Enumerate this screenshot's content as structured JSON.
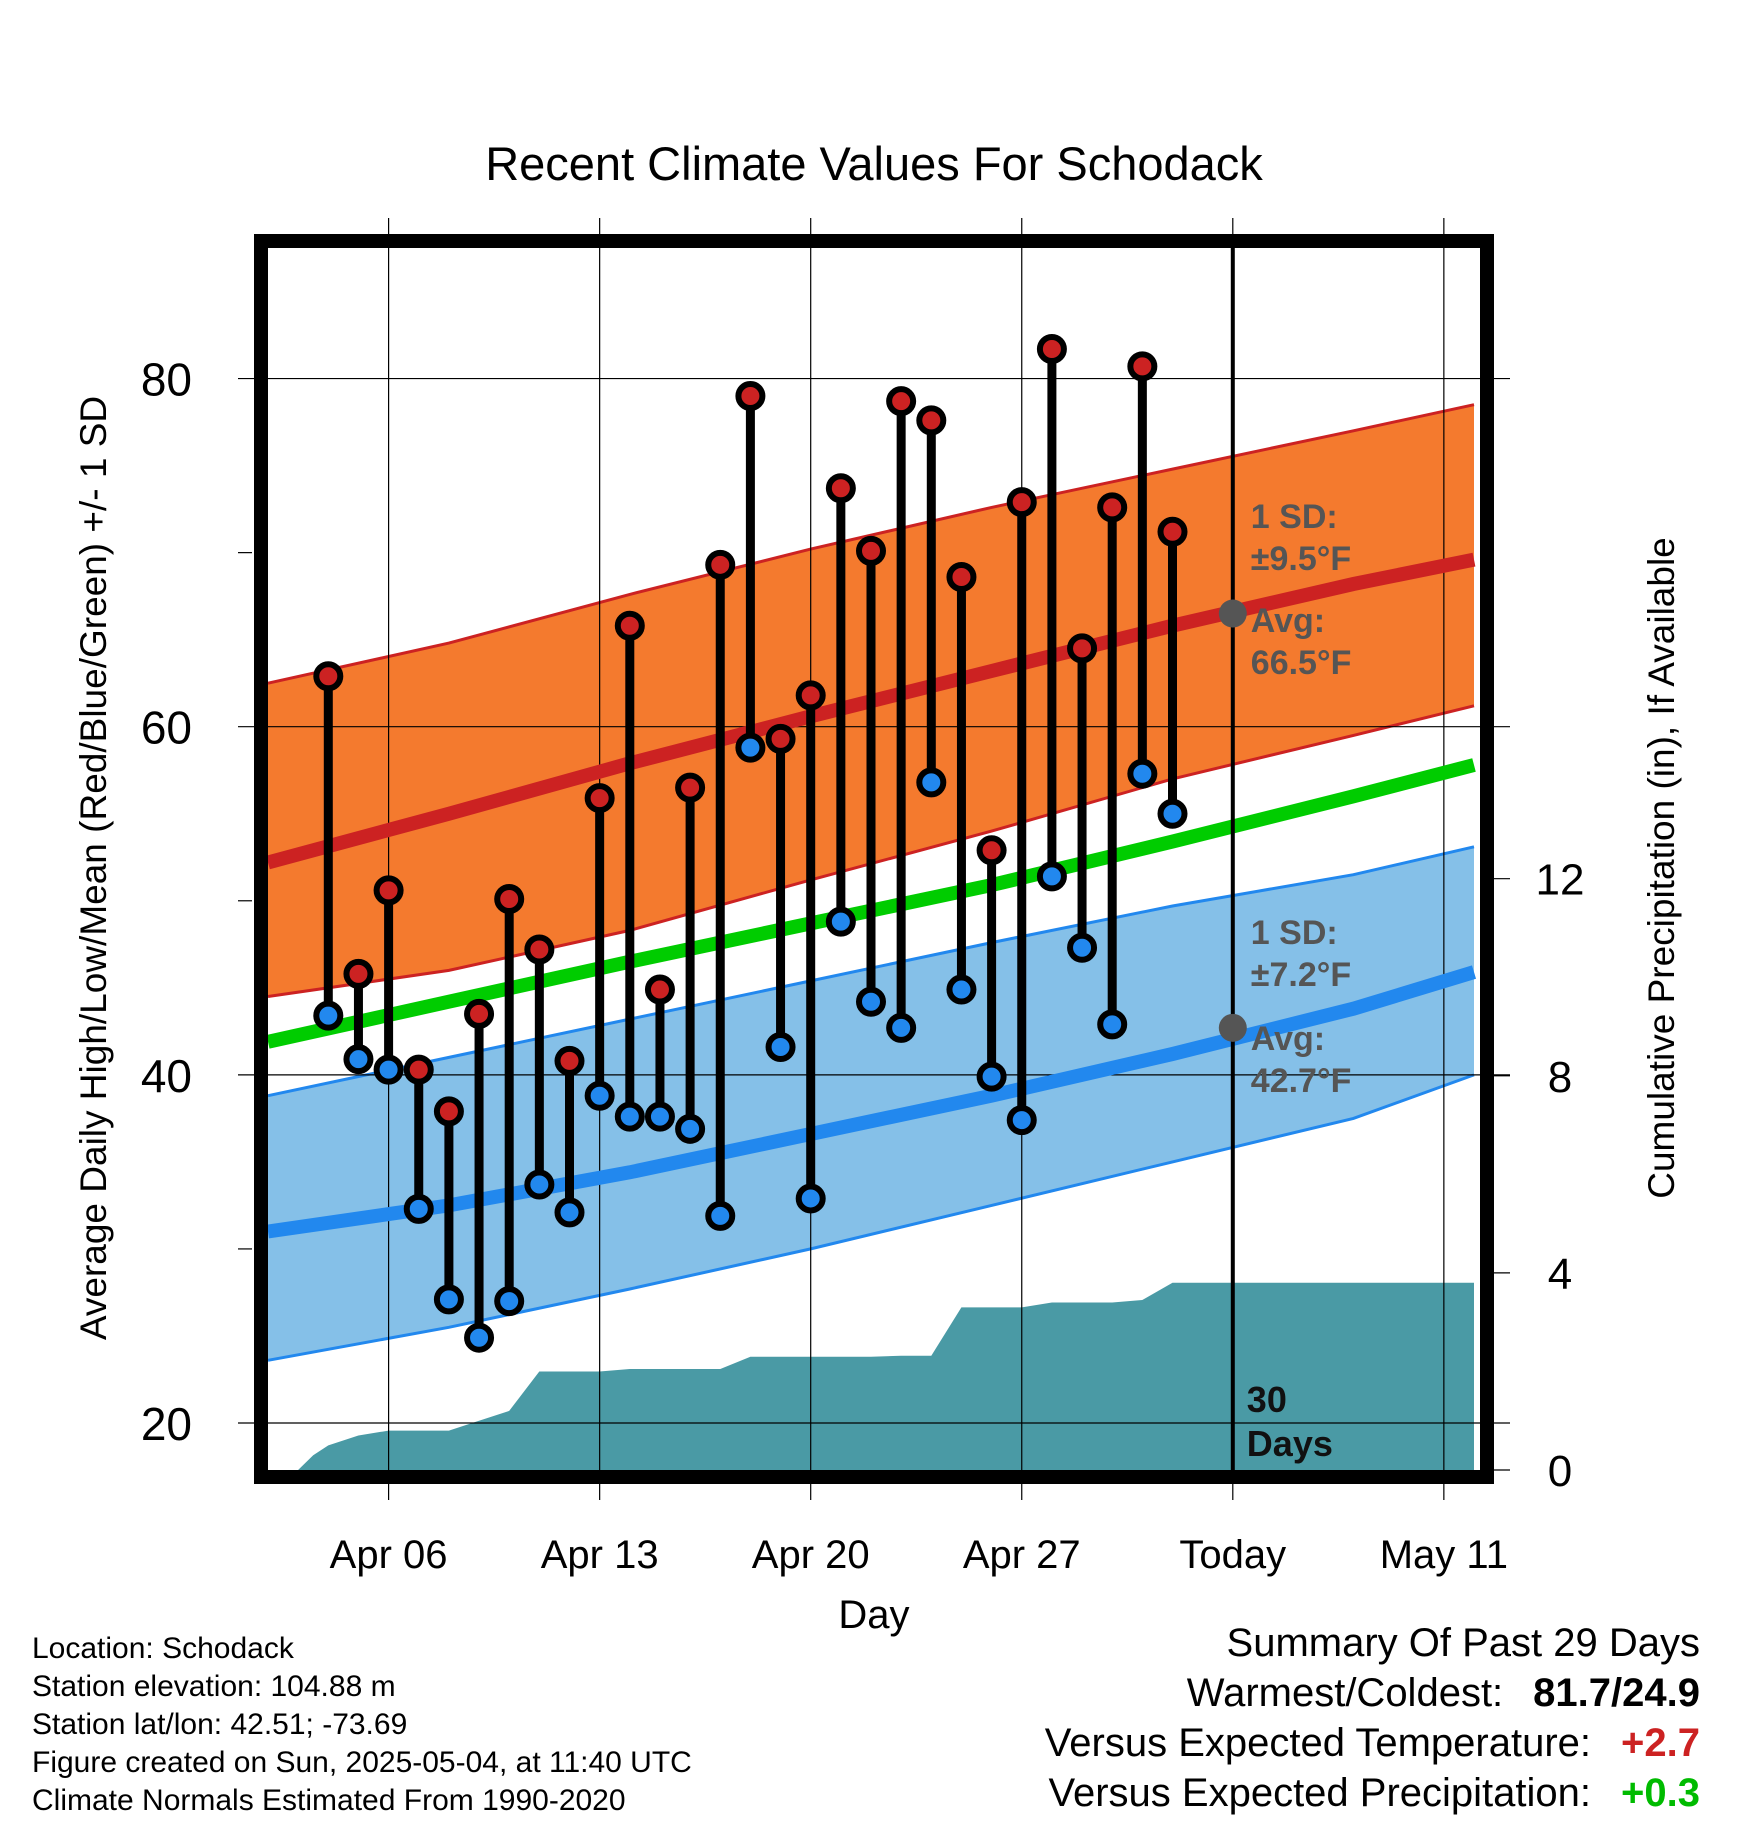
{
  "chart_data": {
    "type": "line",
    "title": "Recent Climate Values For Schodack",
    "xlabel": "Day",
    "ylabel": "Average Daily High/Low/Mean (Red/Blue/Green) +/- 1 SD",
    "y2label": "Cumulative Precipitation (in), If Available",
    "x_tick_labels": [
      "Apr 06",
      "Apr 13",
      "Apr 20",
      "Apr 27",
      "Today",
      "May 11"
    ],
    "y_ticks": [
      20,
      40,
      60,
      80
    ],
    "y2_ticks": [
      0,
      4,
      8,
      12
    ],
    "ylim": [
      17.3,
      87.5
    ],
    "y2lim": [
      0,
      24.8
    ],
    "x_range": [
      "Apr 02",
      "May 15"
    ],
    "today_index": 32,
    "grid": true,
    "daily_observations": {
      "dates": [
        "Apr 04",
        "Apr 05",
        "Apr 06",
        "Apr 07",
        "Apr 08",
        "Apr 09",
        "Apr 10",
        "Apr 11",
        "Apr 12",
        "Apr 13",
        "Apr 14",
        "Apr 15",
        "Apr 16",
        "Apr 17",
        "Apr 18",
        "Apr 19",
        "Apr 20",
        "Apr 21",
        "Apr 22",
        "Apr 23",
        "Apr 24",
        "Apr 25",
        "Apr 26",
        "Apr 27",
        "Apr 28",
        "Apr 29",
        "Apr 30",
        "May 01",
        "May 02",
        "May 03"
      ],
      "high": [
        62.9,
        45.8,
        50.6,
        40.3,
        37.9,
        43.5,
        50.1,
        47.2,
        40.8,
        55.9,
        65.8,
        44.9,
        56.5,
        69.3,
        79.0,
        59.3,
        61.8,
        73.7,
        70.1,
        78.7,
        77.6,
        68.6,
        52.9,
        72.9,
        81.7,
        64.5,
        72.6,
        80.7,
        71.2,
        null
      ],
      "low": [
        43.4,
        40.9,
        40.3,
        32.3,
        27.1,
        24.9,
        27.0,
        33.7,
        32.1,
        38.8,
        37.6,
        37.6,
        36.9,
        31.9,
        58.8,
        41.6,
        32.9,
        48.8,
        44.2,
        42.7,
        56.8,
        44.9,
        39.9,
        37.4,
        51.4,
        47.3,
        42.9,
        57.3,
        55.0,
        null
      ]
    },
    "normals": {
      "x_index": [
        0,
        6,
        12,
        18,
        24,
        30,
        36,
        40
      ],
      "mean": [
        41.9,
        44.2,
        46.5,
        48.7,
        50.9,
        53.4,
        56.0,
        57.8
      ],
      "high_avg": [
        52.2,
        55.0,
        57.9,
        60.6,
        63.2,
        65.8,
        68.2,
        69.6
      ],
      "high_sd_upper": [
        62.5,
        64.8,
        67.6,
        70.2,
        72.6,
        74.8,
        77.0,
        78.5
      ],
      "high_sd_lower": [
        44.5,
        46.0,
        48.3,
        51.2,
        54.0,
        57.0,
        59.5,
        61.2
      ],
      "low_avg": [
        31.0,
        32.5,
        34.4,
        36.6,
        38.8,
        41.2,
        43.8,
        45.9
      ],
      "low_sd_upper": [
        38.8,
        41.0,
        43.2,
        45.4,
        47.6,
        49.7,
        51.5,
        53.1
      ],
      "low_sd_lower": [
        23.6,
        25.5,
        27.7,
        30.0,
        32.5,
        35.0,
        37.5,
        40.0
      ]
    },
    "precipitation_cumulative": {
      "x_index": [
        0,
        1,
        1.5,
        2,
        3,
        4,
        5,
        6,
        7,
        8,
        9,
        10,
        11,
        12,
        13,
        14,
        15,
        16,
        17,
        18,
        19,
        20,
        21,
        22,
        23,
        24,
        25,
        26,
        27,
        28,
        29,
        30,
        31,
        32,
        40
      ],
      "values": [
        0,
        0,
        0.3,
        0.5,
        0.7,
        0.8,
        0.8,
        0.8,
        1.0,
        1.2,
        2.0,
        2.0,
        2.0,
        2.05,
        2.05,
        2.05,
        2.05,
        2.3,
        2.3,
        2.3,
        2.3,
        2.3,
        2.32,
        2.32,
        3.3,
        3.3,
        3.3,
        3.4,
        3.4,
        3.4,
        3.45,
        3.8,
        3.8,
        3.8,
        3.8
      ]
    },
    "annotations": {
      "high_sd_label": "1 SD:",
      "high_sd_value": "±9.5°F",
      "high_avg_label": "Avg:",
      "high_avg_value": "66.5°F",
      "high_avg_marker": 66.5,
      "low_sd_label": "1 SD:",
      "low_sd_value": "±7.2°F",
      "low_avg_label": "Avg:",
      "low_avg_value": "42.7°F",
      "low_avg_marker": 42.7,
      "days_count": "30",
      "days_word": "Days"
    },
    "colors": {
      "high": "#cc2222",
      "low": "#2288ee",
      "mean": "#00cc00",
      "high_band": "#f47a2e",
      "low_band": "#85c0e8",
      "precip": "#4a9aa5",
      "annotation": "#555555"
    }
  },
  "info": {
    "location": "Location: Schodack",
    "elevation": "Station elevation: 104.88 m",
    "latlon": "Station lat/lon: 42.51; -73.69",
    "created": "Figure created on Sun, 2025-05-04, at 11:40 UTC",
    "normals": "Climate Normals Estimated From 1990-2020"
  },
  "summary": {
    "title": "Summary Of Past 29 Days",
    "warmest_label": "Warmest/Coldest:",
    "warmest_value": "81.7/24.9",
    "temp_label": "Versus Expected Temperature:",
    "temp_value": "+2.7",
    "temp_color": "#cc2222",
    "precip_label": "Versus Expected Precipitation:",
    "precip_value": "+0.3",
    "precip_color": "#00bb00"
  }
}
